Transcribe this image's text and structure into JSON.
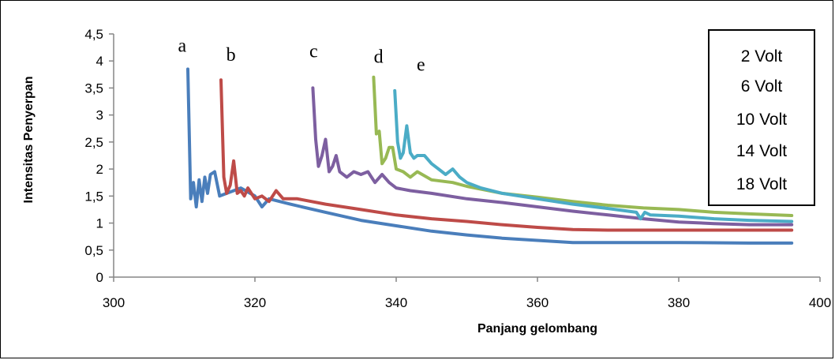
{
  "chart_data": {
    "type": "line",
    "title": "",
    "xlabel": "Panjang gelombang",
    "ylabel": "Intensitas Penyerpan",
    "xlim": [
      300,
      400
    ],
    "ylim": [
      0,
      4.5
    ],
    "x_ticks": [
      300,
      320,
      340,
      360,
      380,
      400
    ],
    "y_ticks": [
      0,
      0.5,
      1,
      1.5,
      2,
      2.5,
      3,
      3.5,
      4,
      4.5
    ],
    "x_tick_labels": [
      "300",
      "320",
      "340",
      "360",
      "380",
      "400"
    ],
    "y_tick_labels": [
      "0",
      "0,5",
      "1",
      "1,5",
      "2",
      "2,5",
      "3",
      "3,5",
      "4",
      "4,5"
    ],
    "grid": false,
    "legend_position": "top-right",
    "legend": [
      "2 Volt",
      "6 Volt",
      "10 Volt",
      "14 Volt",
      "18 Volt"
    ],
    "series": [
      {
        "name": "a",
        "color": "#4a7ebb",
        "x": [
          310.5,
          310.9,
          311.3,
          311.7,
          312.1,
          312.5,
          312.9,
          313.3,
          313.7,
          314.3,
          315.0,
          316.0,
          318.0,
          320.0,
          321.0,
          322.0,
          325.0,
          330.0,
          335.0,
          340.0,
          345.0,
          350.0,
          355.0,
          360.0,
          365.0,
          370.0,
          380.0,
          390.0,
          396.0
        ],
        "y": [
          3.85,
          1.45,
          1.75,
          1.3,
          1.8,
          1.4,
          1.85,
          1.55,
          1.9,
          1.95,
          1.5,
          1.55,
          1.65,
          1.5,
          1.3,
          1.45,
          1.35,
          1.2,
          1.05,
          0.95,
          0.85,
          0.78,
          0.72,
          0.68,
          0.64,
          0.64,
          0.64,
          0.63,
          0.63
        ]
      },
      {
        "name": "b",
        "color": "#be4b48",
        "x": [
          315.2,
          315.6,
          316.0,
          316.5,
          317.0,
          317.5,
          318.0,
          318.5,
          319.0,
          320.0,
          321.0,
          322.0,
          323.0,
          324.0,
          326.0,
          330.0,
          335.0,
          340.0,
          345.0,
          350.0,
          355.0,
          360.0,
          365.0,
          370.0,
          380.0,
          390.0,
          396.0
        ],
        "y": [
          3.65,
          1.85,
          1.55,
          1.7,
          2.15,
          1.55,
          1.6,
          1.5,
          1.65,
          1.45,
          1.5,
          1.4,
          1.6,
          1.45,
          1.45,
          1.35,
          1.25,
          1.15,
          1.08,
          1.03,
          0.97,
          0.92,
          0.88,
          0.87,
          0.87,
          0.87,
          0.87
        ]
      },
      {
        "name": "c",
        "color": "#7d5fa0",
        "x": [
          328.2,
          328.6,
          329.0,
          329.5,
          330.0,
          330.5,
          331.0,
          331.5,
          332.0,
          333.0,
          334.0,
          335.0,
          336.0,
          337.0,
          338.0,
          339.0,
          340.0,
          342.0,
          345.0,
          350.0,
          355.0,
          360.0,
          365.0,
          370.0,
          375.0,
          380.0,
          385.0,
          390.0,
          396.0
        ],
        "y": [
          3.5,
          2.55,
          2.05,
          2.25,
          2.55,
          1.95,
          2.05,
          2.25,
          1.95,
          1.85,
          1.95,
          1.9,
          1.95,
          1.75,
          1.9,
          1.75,
          1.65,
          1.6,
          1.55,
          1.45,
          1.38,
          1.3,
          1.22,
          1.15,
          1.08,
          1.02,
          0.99,
          0.97,
          0.97
        ]
      },
      {
        "name": "d",
        "color": "#98b954",
        "x": [
          336.8,
          337.2,
          337.6,
          338.0,
          338.5,
          339.0,
          339.5,
          340.0,
          341.0,
          342.0,
          343.0,
          345.0,
          348.0,
          350.0,
          355.0,
          360.0,
          365.0,
          370.0,
          375.0,
          380.0,
          385.0,
          390.0,
          396.0
        ],
        "y": [
          3.7,
          2.65,
          2.7,
          2.1,
          2.2,
          2.4,
          2.4,
          2.0,
          1.95,
          1.85,
          1.95,
          1.8,
          1.75,
          1.68,
          1.55,
          1.48,
          1.4,
          1.33,
          1.28,
          1.25,
          1.2,
          1.17,
          1.14
        ]
      },
      {
        "name": "e",
        "color": "#4bacc6",
        "x": [
          339.8,
          340.2,
          340.6,
          341.0,
          341.5,
          342.0,
          342.5,
          343.0,
          344.0,
          345.0,
          346.0,
          347.0,
          348.0,
          349.0,
          350.0,
          352.0,
          355.0,
          360.0,
          365.0,
          370.0,
          374.0,
          374.6,
          375.2,
          376.0,
          380.0,
          385.0,
          390.0,
          396.0
        ],
        "y": [
          3.45,
          2.5,
          2.2,
          2.3,
          2.8,
          2.3,
          2.2,
          2.25,
          2.25,
          2.1,
          2.0,
          1.9,
          2.0,
          1.85,
          1.75,
          1.65,
          1.55,
          1.45,
          1.35,
          1.27,
          1.2,
          1.08,
          1.2,
          1.15,
          1.13,
          1.08,
          1.05,
          1.03
        ]
      }
    ],
    "curve_labels": [
      {
        "text": "a",
        "x": 309.7,
        "y": 4.17
      },
      {
        "text": "b",
        "x": 316.6,
        "y": 4.0
      },
      {
        "text": "c",
        "x": 328.3,
        "y": 4.07
      },
      {
        "text": "d",
        "x": 337.5,
        "y": 3.97
      },
      {
        "text": "e",
        "x": 343.5,
        "y": 3.82
      }
    ]
  }
}
